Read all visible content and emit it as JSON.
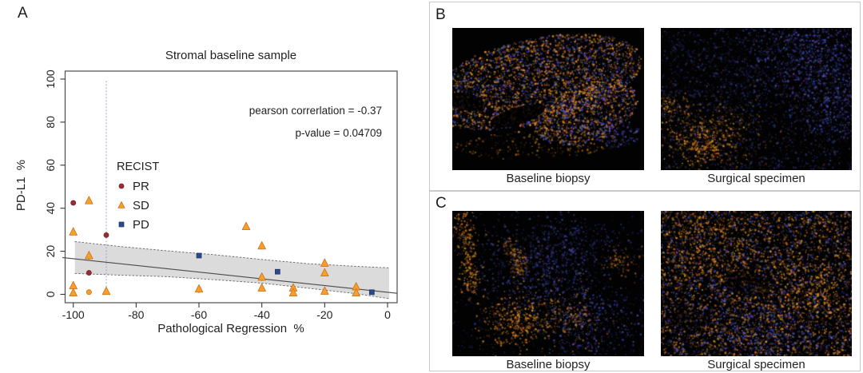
{
  "panel_a": {
    "label": "A"
  },
  "panel_b": {
    "label": "B",
    "images": [
      {
        "caption": "Baseline biopsy",
        "description": "Immunofluorescence micrograph: diagonal biopsy tissue band with dense orange staining mixed with blue nuclei on black background"
      },
      {
        "caption": "Surgical specimen",
        "description": "Immunofluorescence micrograph: dim blue nuclear staining throughout, brighter blue at top right, patchy orange cluster at bottom left"
      }
    ]
  },
  "panel_c": {
    "label": "C",
    "images": [
      {
        "caption": "Baseline biopsy",
        "description": "Immunofluorescence micrograph: mostly dark field, moderate blue nuclei in centre, orange streaks along left edge and orange patches at bottom centre"
      },
      {
        "caption": "Surgical specimen",
        "description": "Immunofluorescence micrograph: dense mixed orange and blue staining across the whole field"
      }
    ]
  },
  "chart_data": {
    "type": "scatter",
    "title": "Stromal baseline sample",
    "xlabel": "Pathological Regression  %",
    "ylabel": "PD-L1  %",
    "xlim": [
      -105,
      4
    ],
    "ylim": [
      -4,
      104
    ],
    "xticks": [
      -100,
      -80,
      -60,
      -40,
      -20,
      0
    ],
    "yticks": [
      0,
      20,
      40,
      60,
      80,
      100
    ],
    "grid": false,
    "annotations": [
      "pearson correrlation = -0.37",
      "p-value = 0.04709"
    ],
    "legend": {
      "title": "RECIST",
      "position": "inside-left",
      "entries": [
        {
          "label": "PR",
          "marker": "circle",
          "color": "#9e2b33"
        },
        {
          "label": "SD",
          "marker": "triangle",
          "color": "#f5a02c"
        },
        {
          "label": "PD",
          "marker": "square",
          "color": "#2b4a8b"
        }
      ]
    },
    "vline": {
      "x": -89.5,
      "style": "dotted",
      "color": "#8f94d4"
    },
    "regression": {
      "line": [
        [
          -103.5,
          17.1
        ],
        [
          3,
          0.5
        ]
      ],
      "band_upper": [
        [
          -99.5,
          24.5
        ],
        [
          -85,
          22.2
        ],
        [
          -70,
          20.2
        ],
        [
          -55,
          18.4
        ],
        [
          -40,
          16.2
        ],
        [
          -25,
          14.2
        ],
        [
          -10,
          13.0
        ],
        [
          0.5,
          12.3
        ]
      ],
      "band_lower": [
        [
          -99.5,
          9.7
        ],
        [
          -85,
          8.9
        ],
        [
          -70,
          8.2
        ],
        [
          -55,
          6.8
        ],
        [
          -40,
          5.2
        ],
        [
          -25,
          2.8
        ],
        [
          -10,
          0.3
        ],
        [
          0.5,
          -2.0
        ]
      ],
      "band_color": "#d7d7d7"
    },
    "series": [
      {
        "name": "PR",
        "marker": "circle",
        "color": "#9e2b33",
        "edge": "#701c24",
        "points": [
          [
            -100,
            42.5
          ],
          [
            -89.5,
            27.5
          ],
          [
            -95,
            10
          ]
        ]
      },
      {
        "name": "SD",
        "marker": "triangle",
        "color": "#f5a02c",
        "edge": "#cf6f1a",
        "points": [
          [
            -95,
            43.5
          ],
          [
            -100,
            29
          ],
          [
            -45,
            31.5
          ],
          [
            -40,
            22.5
          ],
          [
            -95,
            18
          ],
          [
            -20,
            14.5
          ],
          [
            -20,
            10
          ],
          [
            -40,
            8
          ],
          [
            -40,
            3
          ],
          [
            -30,
            3
          ],
          [
            -100,
            4
          ],
          [
            -100,
            0.7
          ],
          [
            -89.5,
            1.4
          ],
          [
            -60,
            2.5
          ],
          [
            -30,
            0.7
          ],
          [
            -20,
            1.5
          ],
          [
            -10,
            3.5
          ],
          [
            -10,
            0.7
          ]
        ],
        "overplotted_circles": [
          [
            -95,
            1
          ],
          [
            -60,
            2
          ],
          [
            -40,
            7.5
          ],
          [
            -95,
            17.5
          ]
        ]
      },
      {
        "name": "PD",
        "marker": "square",
        "color": "#2b4a8b",
        "edge": "#1d3260",
        "points": [
          [
            -60,
            18
          ],
          [
            -35,
            10.5
          ],
          [
            -5,
            1
          ]
        ]
      }
    ]
  }
}
